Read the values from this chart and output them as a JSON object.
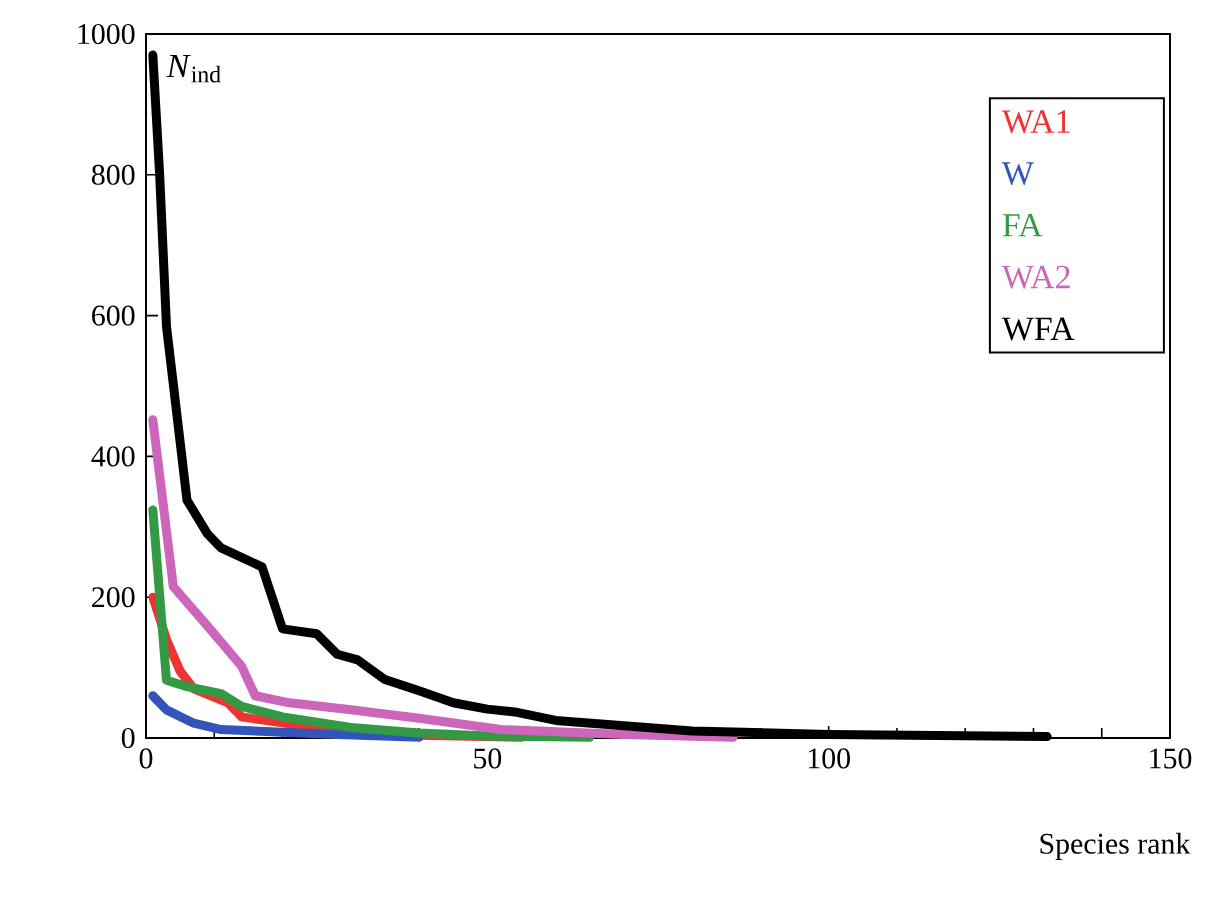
{
  "chart_data": {
    "type": "line",
    "xlabel": "Species rank",
    "ylabel": "*N*$_{ind}$",
    "xlim": [
      0,
      150
    ],
    "ylim": [
      0,
      1000
    ],
    "xticks": [
      0,
      50,
      100,
      150
    ],
    "yticks": [
      0,
      200,
      400,
      600,
      800,
      1000
    ],
    "legend": "top right",
    "grid": false,
    "marker": "none",
    "line_style": "solid",
    "series": [
      {
        "name": "WA1",
        "color": "#ee3333",
        "x": [
          1,
          3,
          5,
          7,
          12,
          14,
          21,
          30,
          40,
          55
        ],
        "values": [
          200,
          140,
          95,
          70,
          50,
          30,
          20,
          null,
          4,
          1
        ]
      },
      {
        "name": "W",
        "color": "#3355bb",
        "x": [
          1,
          3,
          7,
          11,
          25,
          40
        ],
        "values": [
          60,
          40,
          21,
          12,
          6,
          1
        ]
      },
      {
        "name": "FA",
        "color": "#339944",
        "x": [
          1,
          3,
          6,
          11,
          14,
          20,
          30,
          40,
          50,
          65
        ],
        "values": [
          324,
          82,
          73,
          63,
          45,
          30,
          15,
          7,
          3,
          1
        ]
      },
      {
        "name": "WA2",
        "color": "#cc66bb",
        "x": [
          1,
          4,
          9,
          14,
          16,
          21,
          30,
          40,
          52,
          70,
          86
        ],
        "values": [
          452,
          215,
          159,
          102,
          60,
          50,
          40,
          28,
          12,
          5,
          1
        ]
      },
      {
        "name": "WFA",
        "color": "#000000",
        "x": [
          1,
          2,
          3,
          6,
          9,
          11,
          17,
          20,
          25,
          28,
          31,
          35,
          40,
          45,
          50,
          54,
          60,
          80,
          100,
          132
        ],
        "values": [
          970,
          800,
          585,
          338,
          290,
          270,
          243,
          155,
          148,
          119,
          111,
          83,
          67,
          50,
          41,
          37,
          25,
          10,
          5,
          2
        ]
      }
    ]
  }
}
